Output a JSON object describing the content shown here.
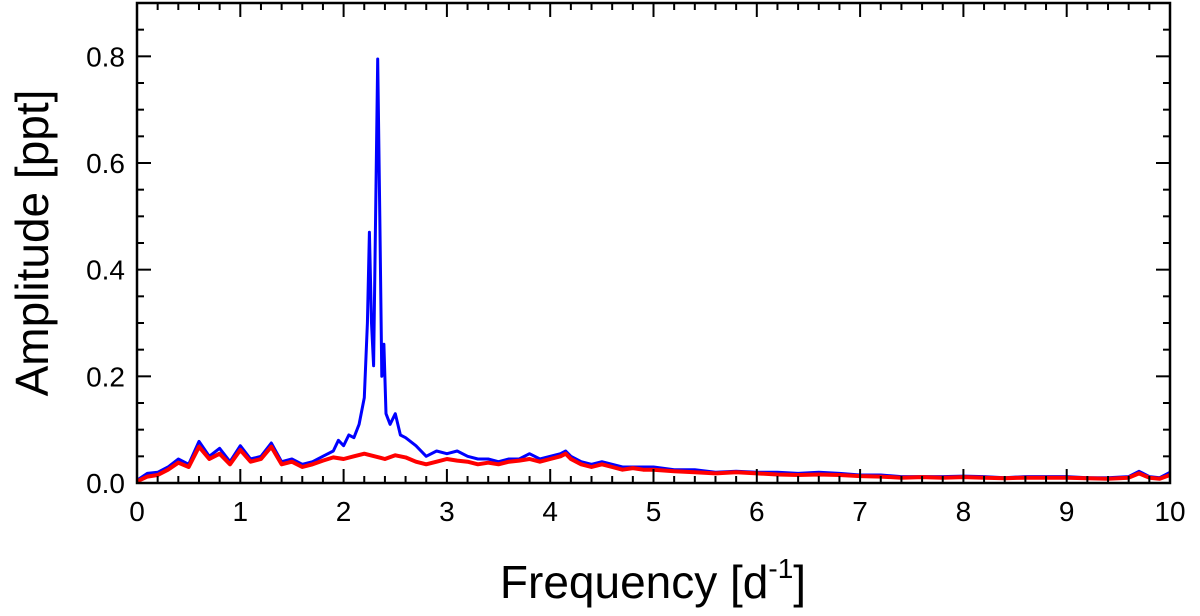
{
  "chart_data": {
    "type": "line",
    "title": "",
    "xlabel": "Frequency [d",
    "xlabel_sup": "-1",
    "xlabel_close": "]",
    "ylabel": "Amplitude [ppt]",
    "xlim": [
      0,
      10
    ],
    "ylim": [
      0,
      0.9
    ],
    "x_ticks": [
      0,
      1,
      2,
      3,
      4,
      5,
      6,
      7,
      8,
      9,
      10
    ],
    "x_tick_labels": [
      "0",
      "1",
      "2",
      "3",
      "4",
      "5",
      "6",
      "7",
      "8",
      "9",
      "10"
    ],
    "y_ticks": [
      0.0,
      0.2,
      0.4,
      0.6,
      0.8
    ],
    "y_tick_labels": [
      "0.0",
      "0.2",
      "0.4",
      "0.6",
      "0.8"
    ],
    "grid": false,
    "series": [
      {
        "color": "#0000ff",
        "points": [
          [
            0.0,
            0.005
          ],
          [
            0.1,
            0.018
          ],
          [
            0.2,
            0.02
          ],
          [
            0.3,
            0.03
          ],
          [
            0.4,
            0.045
          ],
          [
            0.5,
            0.035
          ],
          [
            0.6,
            0.078
          ],
          [
            0.7,
            0.05
          ],
          [
            0.8,
            0.065
          ],
          [
            0.9,
            0.04
          ],
          [
            1.0,
            0.07
          ],
          [
            1.1,
            0.045
          ],
          [
            1.2,
            0.05
          ],
          [
            1.3,
            0.075
          ],
          [
            1.4,
            0.04
          ],
          [
            1.5,
            0.045
          ],
          [
            1.6,
            0.035
          ],
          [
            1.7,
            0.04
          ],
          [
            1.8,
            0.05
          ],
          [
            1.9,
            0.06
          ],
          [
            1.95,
            0.08
          ],
          [
            2.0,
            0.07
          ],
          [
            2.05,
            0.09
          ],
          [
            2.1,
            0.085
          ],
          [
            2.15,
            0.11
          ],
          [
            2.2,
            0.16
          ],
          [
            2.23,
            0.3
          ],
          [
            2.25,
            0.47
          ],
          [
            2.27,
            0.3
          ],
          [
            2.29,
            0.22
          ],
          [
            2.31,
            0.5
          ],
          [
            2.33,
            0.795
          ],
          [
            2.35,
            0.5
          ],
          [
            2.37,
            0.2
          ],
          [
            2.39,
            0.26
          ],
          [
            2.41,
            0.13
          ],
          [
            2.45,
            0.11
          ],
          [
            2.5,
            0.13
          ],
          [
            2.55,
            0.09
          ],
          [
            2.6,
            0.085
          ],
          [
            2.7,
            0.07
          ],
          [
            2.8,
            0.05
          ],
          [
            2.9,
            0.06
          ],
          [
            3.0,
            0.055
          ],
          [
            3.1,
            0.06
          ],
          [
            3.2,
            0.05
          ],
          [
            3.3,
            0.045
          ],
          [
            3.4,
            0.045
          ],
          [
            3.5,
            0.04
          ],
          [
            3.6,
            0.045
          ],
          [
            3.7,
            0.045
          ],
          [
            3.8,
            0.055
          ],
          [
            3.9,
            0.045
          ],
          [
            4.0,
            0.05
          ],
          [
            4.1,
            0.055
          ],
          [
            4.15,
            0.06
          ],
          [
            4.2,
            0.05
          ],
          [
            4.3,
            0.04
          ],
          [
            4.4,
            0.035
          ],
          [
            4.5,
            0.04
          ],
          [
            4.6,
            0.035
          ],
          [
            4.7,
            0.03
          ],
          [
            4.8,
            0.03
          ],
          [
            4.9,
            0.03
          ],
          [
            5.0,
            0.03
          ],
          [
            5.2,
            0.025
          ],
          [
            5.4,
            0.025
          ],
          [
            5.6,
            0.02
          ],
          [
            5.8,
            0.022
          ],
          [
            6.0,
            0.02
          ],
          [
            6.2,
            0.02
          ],
          [
            6.4,
            0.018
          ],
          [
            6.6,
            0.02
          ],
          [
            6.8,
            0.018
          ],
          [
            7.0,
            0.015
          ],
          [
            7.2,
            0.015
          ],
          [
            7.4,
            0.012
          ],
          [
            7.6,
            0.012
          ],
          [
            7.8,
            0.012
          ],
          [
            8.0,
            0.013
          ],
          [
            8.2,
            0.012
          ],
          [
            8.4,
            0.01
          ],
          [
            8.6,
            0.012
          ],
          [
            8.8,
            0.012
          ],
          [
            9.0,
            0.012
          ],
          [
            9.2,
            0.01
          ],
          [
            9.4,
            0.01
          ],
          [
            9.6,
            0.012
          ],
          [
            9.7,
            0.022
          ],
          [
            9.8,
            0.012
          ],
          [
            9.9,
            0.01
          ],
          [
            10.0,
            0.02
          ]
        ]
      },
      {
        "color": "#ff0000",
        "points": [
          [
            0.0,
            0.003
          ],
          [
            0.1,
            0.012
          ],
          [
            0.2,
            0.015
          ],
          [
            0.3,
            0.025
          ],
          [
            0.4,
            0.038
          ],
          [
            0.5,
            0.03
          ],
          [
            0.6,
            0.068
          ],
          [
            0.7,
            0.045
          ],
          [
            0.8,
            0.055
          ],
          [
            0.9,
            0.035
          ],
          [
            1.0,
            0.062
          ],
          [
            1.1,
            0.04
          ],
          [
            1.2,
            0.045
          ],
          [
            1.3,
            0.068
          ],
          [
            1.4,
            0.035
          ],
          [
            1.5,
            0.04
          ],
          [
            1.6,
            0.03
          ],
          [
            1.7,
            0.035
          ],
          [
            1.8,
            0.042
          ],
          [
            1.9,
            0.048
          ],
          [
            2.0,
            0.045
          ],
          [
            2.1,
            0.05
          ],
          [
            2.2,
            0.055
          ],
          [
            2.3,
            0.05
          ],
          [
            2.4,
            0.045
          ],
          [
            2.5,
            0.052
          ],
          [
            2.6,
            0.048
          ],
          [
            2.7,
            0.04
          ],
          [
            2.8,
            0.035
          ],
          [
            2.9,
            0.04
          ],
          [
            3.0,
            0.045
          ],
          [
            3.1,
            0.042
          ],
          [
            3.2,
            0.04
          ],
          [
            3.3,
            0.035
          ],
          [
            3.4,
            0.038
          ],
          [
            3.5,
            0.035
          ],
          [
            3.6,
            0.04
          ],
          [
            3.7,
            0.042
          ],
          [
            3.8,
            0.045
          ],
          [
            3.9,
            0.04
          ],
          [
            4.0,
            0.045
          ],
          [
            4.1,
            0.05
          ],
          [
            4.15,
            0.055
          ],
          [
            4.2,
            0.045
          ],
          [
            4.3,
            0.035
          ],
          [
            4.4,
            0.03
          ],
          [
            4.5,
            0.035
          ],
          [
            4.6,
            0.03
          ],
          [
            4.7,
            0.025
          ],
          [
            4.8,
            0.028
          ],
          [
            4.9,
            0.025
          ],
          [
            5.0,
            0.025
          ],
          [
            5.2,
            0.022
          ],
          [
            5.4,
            0.02
          ],
          [
            5.6,
            0.018
          ],
          [
            5.8,
            0.02
          ],
          [
            6.0,
            0.018
          ],
          [
            6.2,
            0.016
          ],
          [
            6.4,
            0.015
          ],
          [
            6.6,
            0.016
          ],
          [
            6.8,
            0.015
          ],
          [
            7.0,
            0.013
          ],
          [
            7.2,
            0.012
          ],
          [
            7.4,
            0.01
          ],
          [
            7.6,
            0.011
          ],
          [
            7.8,
            0.01
          ],
          [
            8.0,
            0.011
          ],
          [
            8.2,
            0.01
          ],
          [
            8.4,
            0.009
          ],
          [
            8.6,
            0.01
          ],
          [
            8.8,
            0.01
          ],
          [
            9.0,
            0.01
          ],
          [
            9.2,
            0.009
          ],
          [
            9.4,
            0.008
          ],
          [
            9.6,
            0.01
          ],
          [
            9.7,
            0.018
          ],
          [
            9.8,
            0.01
          ],
          [
            9.9,
            0.008
          ],
          [
            10.0,
            0.015
          ]
        ]
      }
    ]
  }
}
